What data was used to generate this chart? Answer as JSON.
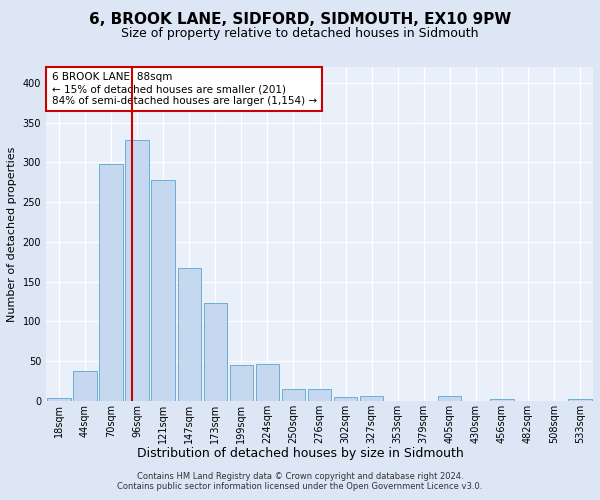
{
  "title": "6, BROOK LANE, SIDFORD, SIDMOUTH, EX10 9PW",
  "subtitle": "Size of property relative to detached houses in Sidmouth",
  "xlabel": "Distribution of detached houses by size in Sidmouth",
  "ylabel": "Number of detached properties",
  "bar_labels": [
    "18sqm",
    "44sqm",
    "70sqm",
    "96sqm",
    "121sqm",
    "147sqm",
    "173sqm",
    "199sqm",
    "224sqm",
    "250sqm",
    "276sqm",
    "302sqm",
    "327sqm",
    "353sqm",
    "379sqm",
    "405sqm",
    "430sqm",
    "456sqm",
    "482sqm",
    "508sqm",
    "533sqm"
  ],
  "bar_values": [
    4,
    38,
    298,
    328,
    278,
    167,
    123,
    45,
    46,
    15,
    15,
    5,
    6,
    0,
    0,
    6,
    0,
    3,
    0,
    0,
    3
  ],
  "bar_color": "#c5d8ef",
  "bar_edge_color": "#6baed6",
  "vline_x": 2.82,
  "vline_color": "#cc0000",
  "annotation_text": "6 BROOK LANE: 88sqm\n← 15% of detached houses are smaller (201)\n84% of semi-detached houses are larger (1,154) →",
  "annotation_box_color": "#ffffff",
  "annotation_box_edge": "#cc0000",
  "ylim": [
    0,
    420
  ],
  "yticks": [
    0,
    50,
    100,
    150,
    200,
    250,
    300,
    350,
    400
  ],
  "footer1": "Contains HM Land Registry data © Crown copyright and database right 2024.",
  "footer2": "Contains public sector information licensed under the Open Government Licence v3.0.",
  "bg_color": "#dce6f5",
  "plot_bg_color": "#eaf0f9",
  "title_fontsize": 11,
  "subtitle_fontsize": 9,
  "ylabel_fontsize": 8,
  "xlabel_fontsize": 9,
  "tick_fontsize": 7,
  "footer_fontsize": 6
}
